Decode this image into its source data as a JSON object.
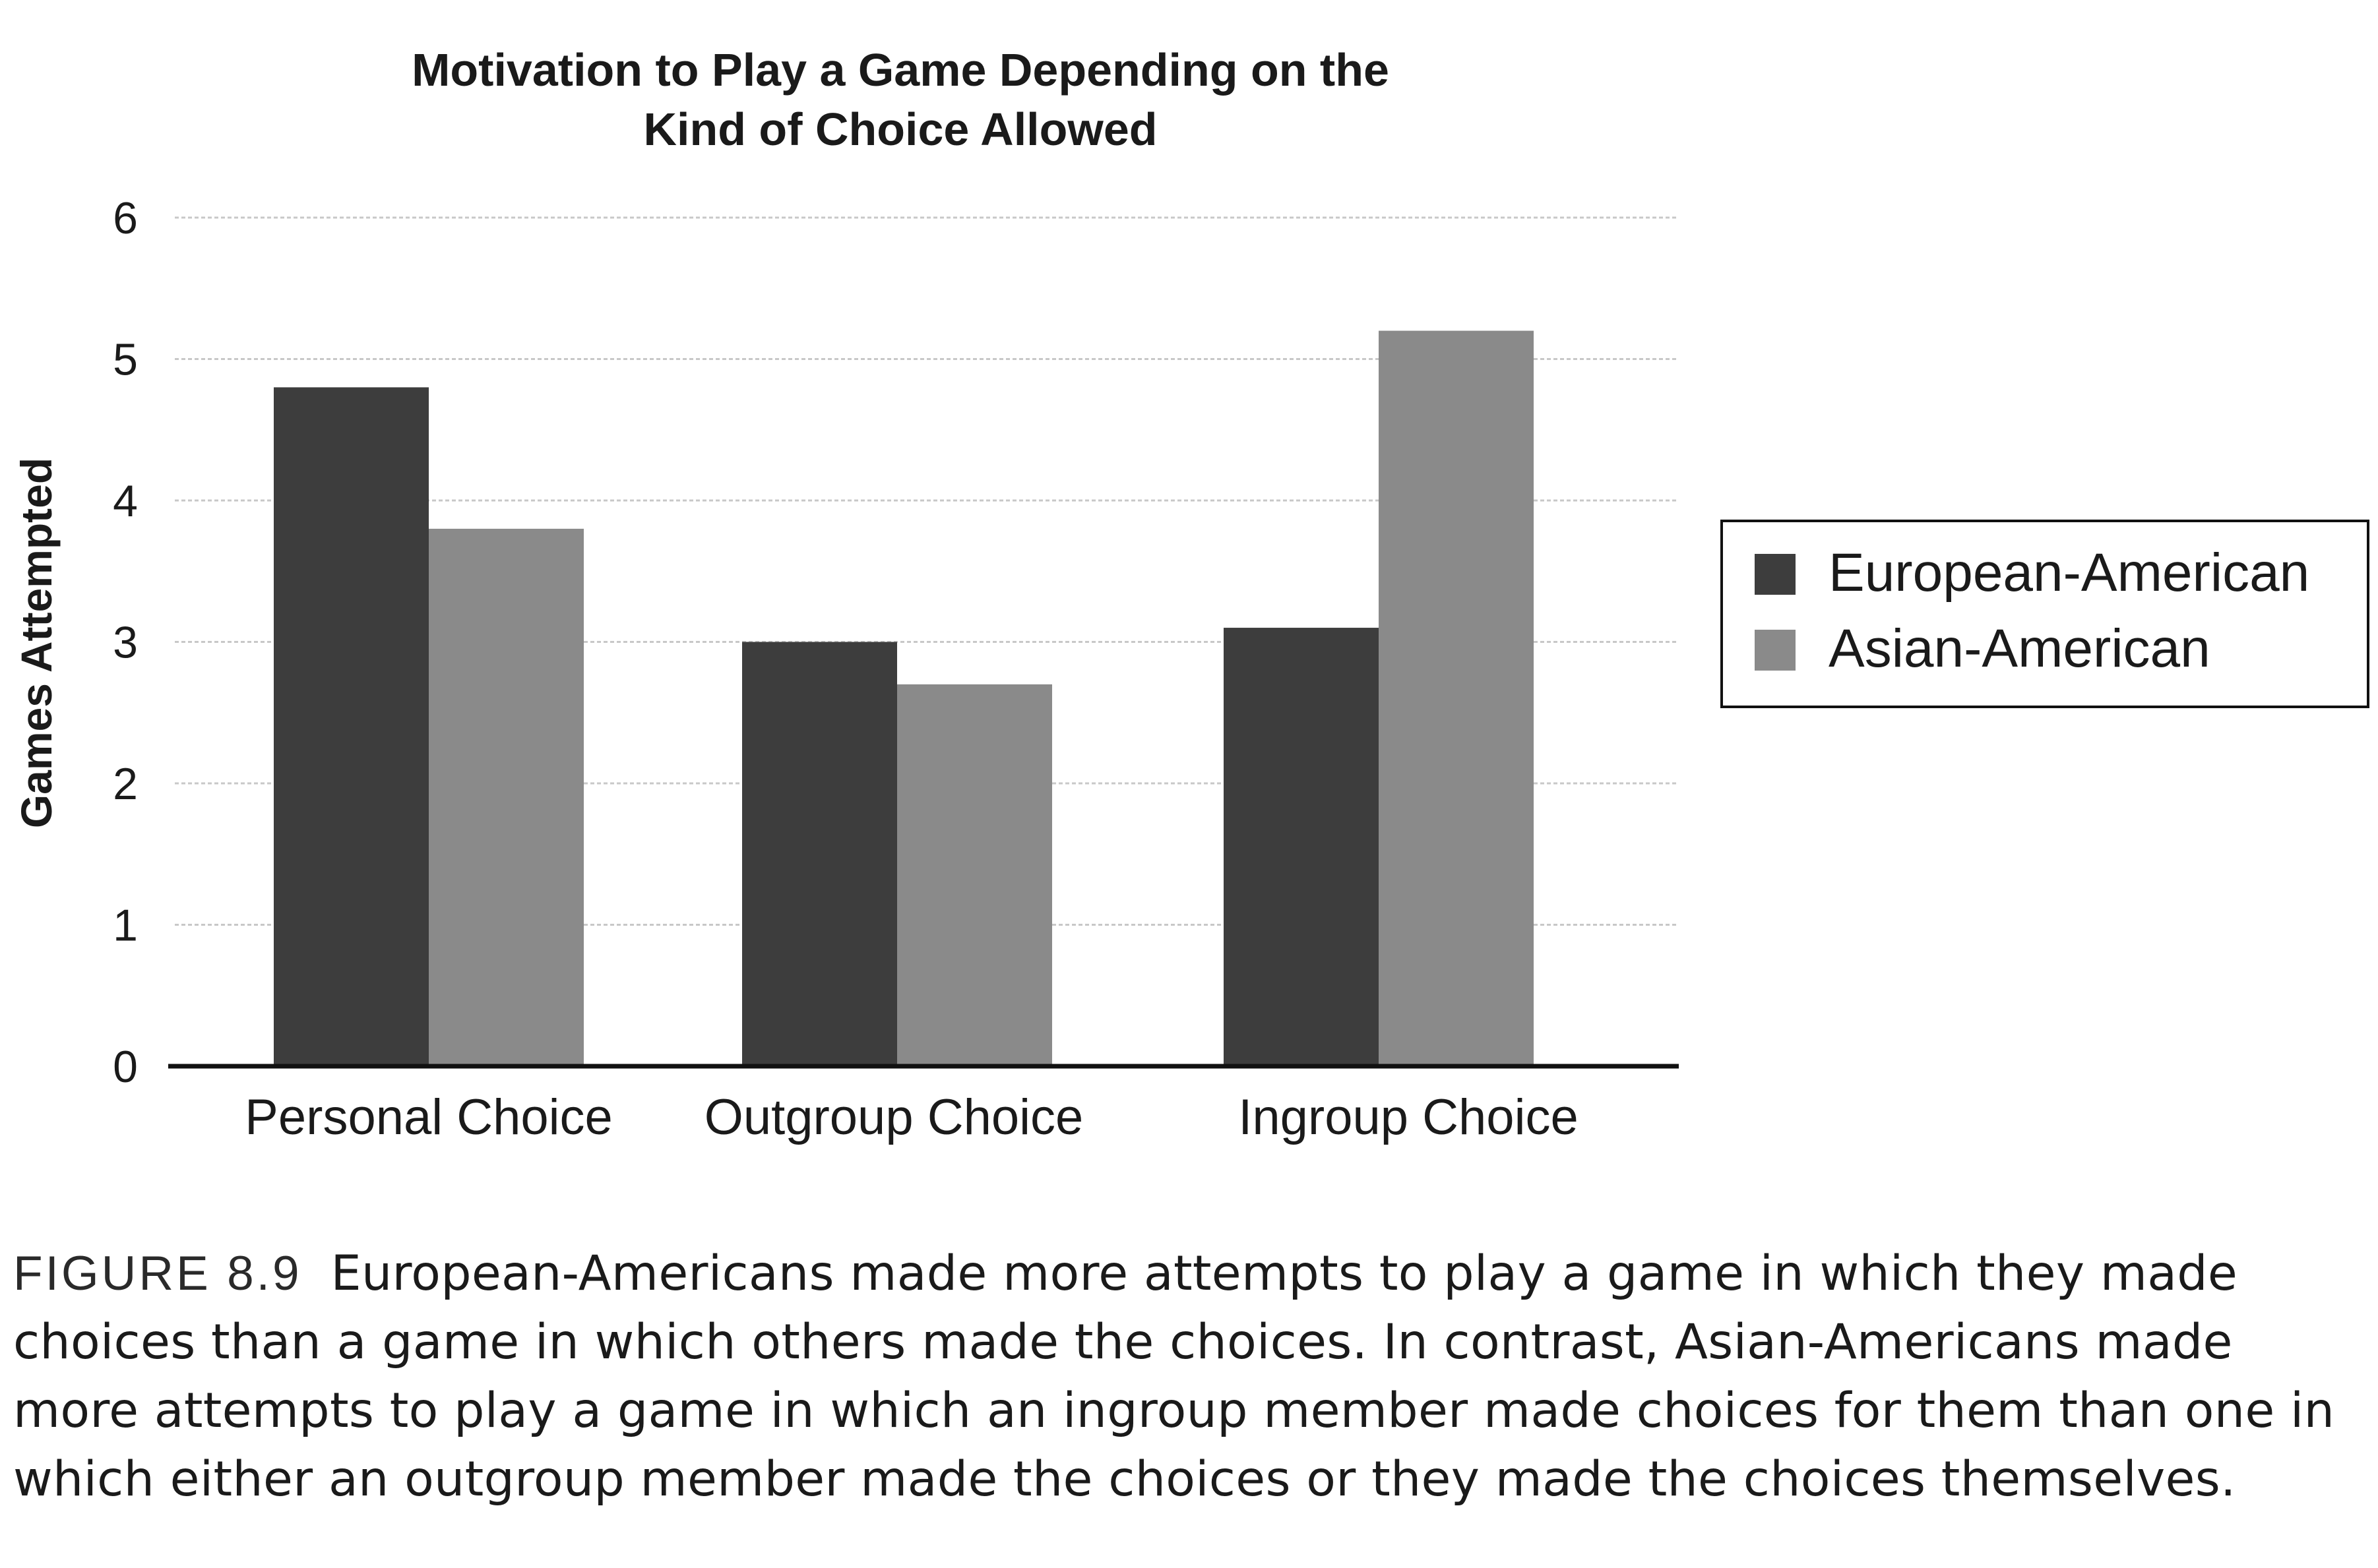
{
  "chart_data": {
    "type": "bar",
    "title": "Motivation to Play a Game Depending on the Kind of Choice Allowed",
    "title_lines": [
      "Motivation to Play a Game Depending on the",
      "Kind of Choice Allowed"
    ],
    "xlabel": "",
    "ylabel": "Games Attempted",
    "ylim": [
      0,
      6
    ],
    "yticks": [
      "0",
      "1",
      "2",
      "3",
      "4",
      "5",
      "6"
    ],
    "grid": true,
    "legend_position": "right",
    "categories": [
      "Personal Choice",
      "Outgroup Choice",
      "Ingroup Choice"
    ],
    "series": [
      {
        "name": "European-American",
        "values": [
          4.8,
          3.0,
          3.1
        ],
        "color": "#3d3d3d"
      },
      {
        "name": "Asian-American",
        "values": [
          3.8,
          2.7,
          5.2
        ],
        "color": "#8a8a8a"
      }
    ]
  },
  "caption": {
    "label": "FIGURE 8.9",
    "text": "European-Americans made more attempts to play a game in which they made choices than a game in which others made the choices. In contrast, Asian-Americans made more attempts to play a game in which an ingroup member made choices for them than one in which either an outgroup member made the choices or they made the choices themselves."
  }
}
